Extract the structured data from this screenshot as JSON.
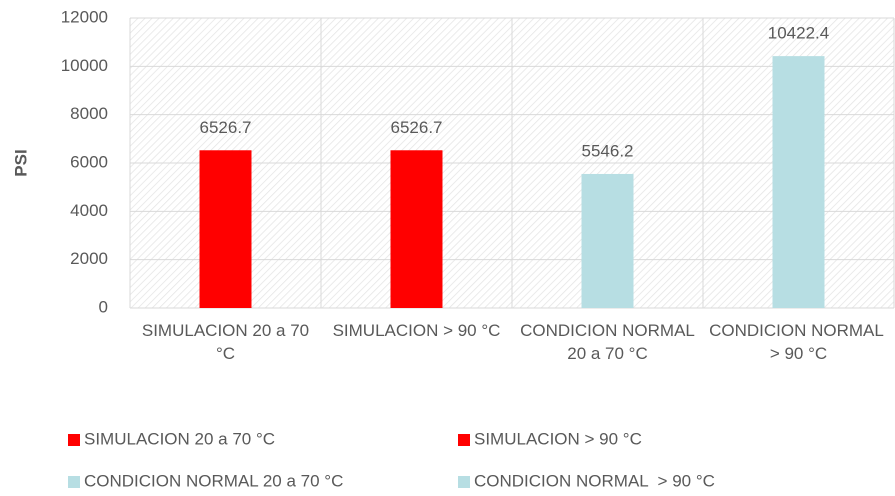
{
  "chart_data": {
    "type": "bar",
    "ylabel": "PSI",
    "categories": [
      "SIMULACION 20 a 70 °C",
      "SIMULACION > 90 °C",
      "CONDICION NORMAL 20 a 70 °C",
      "CONDICION NORMAL  > 90 °C"
    ],
    "values": [
      6526.7,
      6526.7,
      5546.2,
      10422.4
    ],
    "colors": [
      "#ff0000",
      "#ff0000",
      "#b7dee3",
      "#b7dee3"
    ],
    "legend": [
      "SIMULACION 20 a 70 °C",
      "SIMULACION > 90 °C",
      "CONDICION NORMAL 20 a 70 °C",
      "CONDICION NORMAL  > 90 °C"
    ],
    "ylim": [
      0,
      12000
    ],
    "yticks": [
      0,
      2000,
      4000,
      6000,
      8000,
      10000,
      12000
    ],
    "grid": true
  }
}
